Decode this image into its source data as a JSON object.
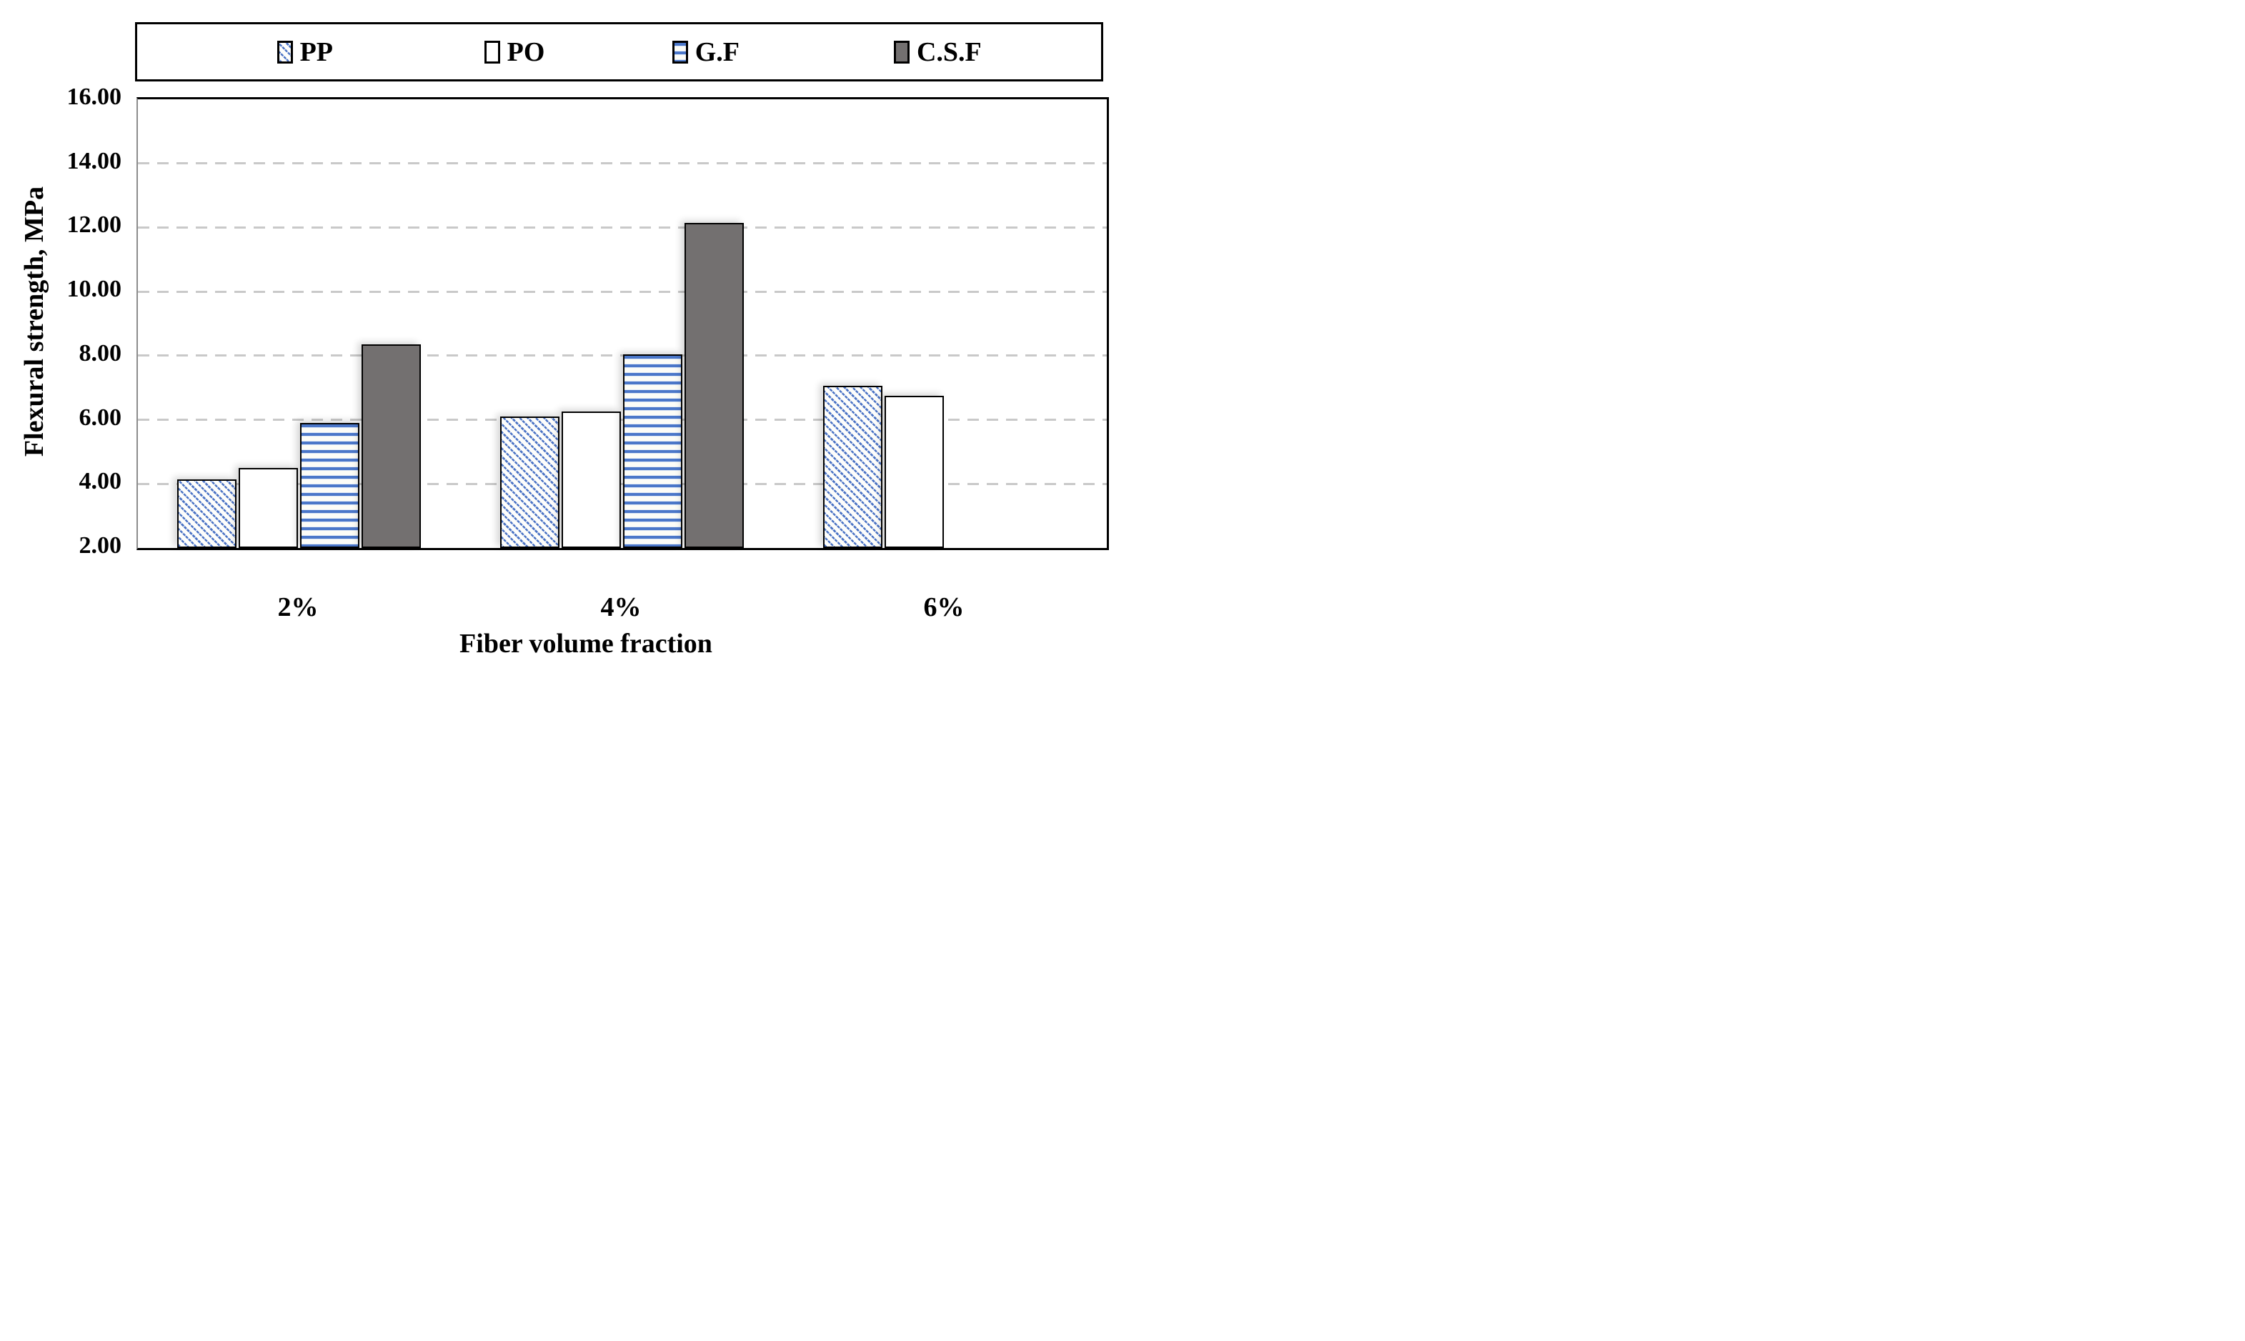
{
  "figure": {
    "background": "#ffffff",
    "x_axis_title": "Fiber volume fraction",
    "y_axis_title": "Flexural strength, MPa"
  },
  "legend": {
    "position": "top",
    "border_color": "#000000",
    "items": [
      {
        "label": "PP",
        "pattern": "diagonal-hatch",
        "color": "#4a72c4"
      },
      {
        "label": "PO",
        "pattern": "solid-white",
        "color": "#ffffff"
      },
      {
        "label": "G.F",
        "pattern": "horizontal-stripes",
        "color": "#4b77c9"
      },
      {
        "label": "C.S.F",
        "pattern": "solid-gray",
        "color": "#737070"
      }
    ]
  },
  "chart_data": {
    "type": "bar",
    "title": "",
    "xlabel": "Fiber volume fraction",
    "ylabel": "Flexural strength, MPa",
    "categories": [
      "2%",
      "4%",
      "6%"
    ],
    "series": [
      {
        "name": "PP",
        "values": [
          4.15,
          6.1,
          7.05
        ]
      },
      {
        "name": "PO",
        "values": [
          4.5,
          6.25,
          6.75
        ]
      },
      {
        "name": "G.F",
        "values": [
          5.9,
          8.05,
          null
        ]
      },
      {
        "name": "C.S.F",
        "values": [
          8.35,
          12.15,
          null
        ]
      }
    ],
    "ylim": [
      2,
      16
    ],
    "y_ticks": [
      2,
      4,
      6,
      8,
      10,
      12,
      14,
      16
    ],
    "y_tick_labels": [
      "2.00",
      "4.00",
      "6.00",
      "8.00",
      "10.00",
      "12.00",
      "14.00",
      "16.00"
    ],
    "grid": "horizontal dashed",
    "gridline_color": "#c9c9c9",
    "legend_position": "top"
  },
  "colors": {
    "bar_blue": "#4a72c4",
    "bar_gray": "#737070",
    "bar_border": "#000000",
    "axis_line": "#000000",
    "plot_left_border": "#8c8c8c",
    "gridline": "#c9c9c9"
  }
}
